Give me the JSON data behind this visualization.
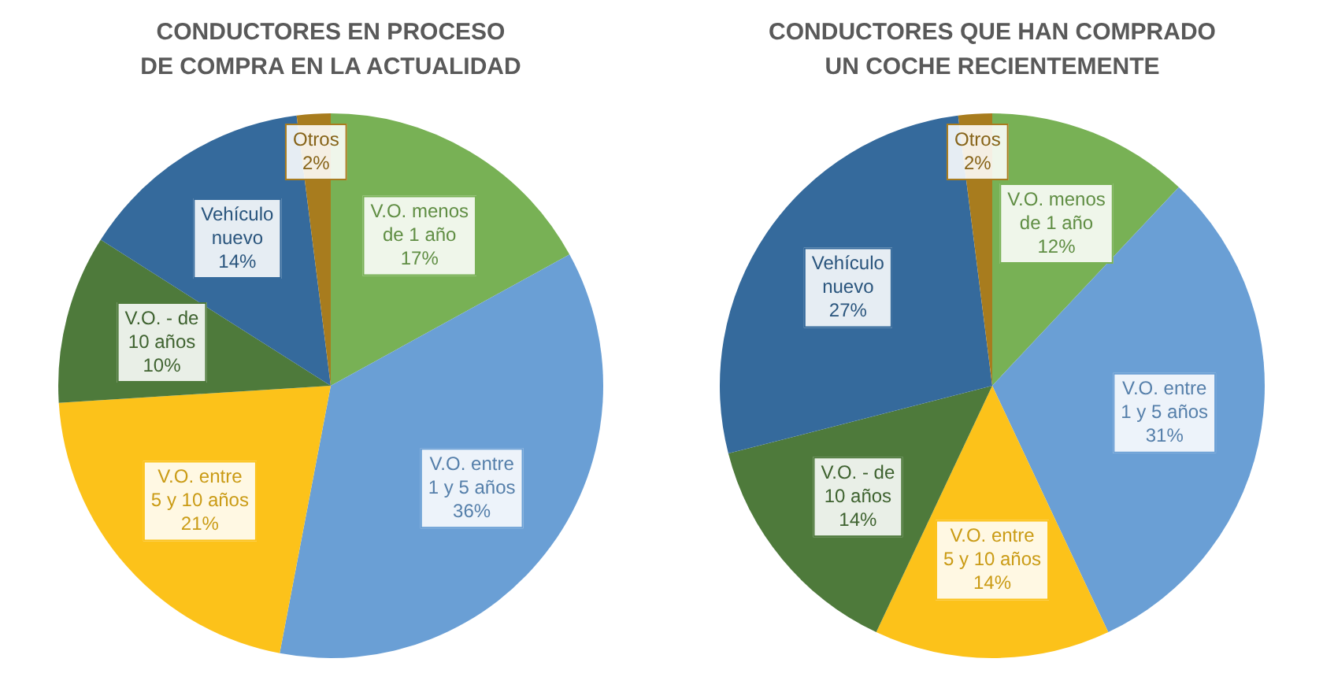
{
  "chart_data": [
    {
      "type": "pie",
      "title": "CONDUCTORES EN PROCESO DE COMPRA EN LA ACTUALIDAD",
      "categories": [
        "V.O. menos de 1 año",
        "V.O. entre 1 y 5 años",
        "V.O. entre 5 y 10 años",
        "V.O. - de 10 años",
        "Vehículo nuevo",
        "Otros"
      ],
      "values": [
        17,
        36,
        21,
        10,
        14,
        2
      ],
      "value_labels": [
        "17%",
        "36%",
        "21%",
        "10%",
        "14%",
        "2%"
      ],
      "colors": [
        "#78b155",
        "#6a9fd5",
        "#fcc21a",
        "#4e7a3b",
        "#356a9c",
        "#a87c1e"
      ]
    },
    {
      "type": "pie",
      "title": "CONDUCTORES QUE HAN COMPRADO UN COCHE RECIENTEMENTE",
      "categories": [
        "V.O. menos de 1 año",
        "V.O. entre 1 y 5 años",
        "V.O. entre 5 y 10 años",
        "V.O. - de 10 años",
        "Vehículo nuevo",
        "Otros"
      ],
      "values": [
        12,
        31,
        14,
        14,
        27,
        2
      ],
      "value_labels": [
        "12%",
        "31%",
        "14%",
        "14%",
        "27%",
        "2%"
      ],
      "colors": [
        "#78b155",
        "#6a9fd5",
        "#fcc21a",
        "#4e7a3b",
        "#356a9c",
        "#a87c1e"
      ]
    }
  ]
}
